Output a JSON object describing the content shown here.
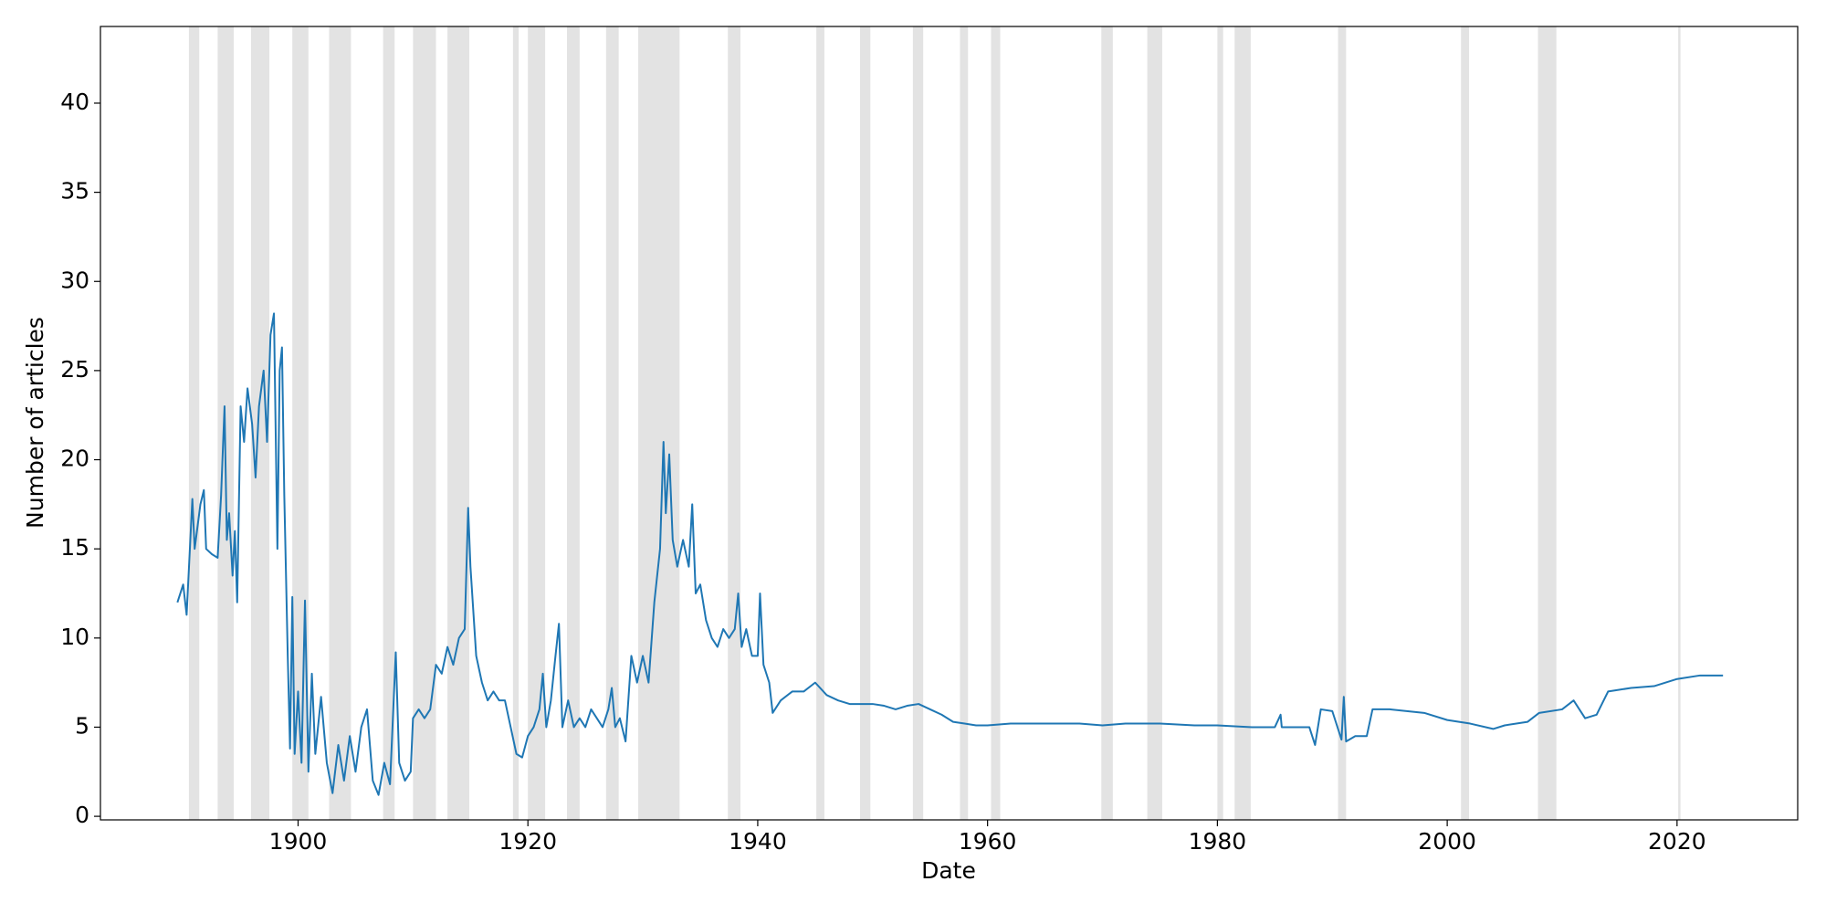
{
  "chart_data": {
    "type": "line",
    "xlabel": "Date",
    "ylabel": "Number of articles",
    "color": "#1f77b4",
    "shade_color": "#e3e3e3",
    "grid": false,
    "xlim": [
      1882.8,
      2030.5
    ],
    "ylim": [
      -0.2,
      44.3
    ],
    "xticks": [
      1900,
      1920,
      1940,
      1960,
      1980,
      2000,
      2020
    ],
    "yticks": [
      0,
      5,
      10,
      15,
      20,
      25,
      30,
      35,
      40
    ],
    "shaded_periods": [
      [
        1890.5,
        1891.4
      ],
      [
        1893.0,
        1894.4
      ],
      [
        1895.9,
        1897.5
      ],
      [
        1899.5,
        1900.9
      ],
      [
        1902.7,
        1904.6
      ],
      [
        1907.4,
        1908.4
      ],
      [
        1910.0,
        1912.0
      ],
      [
        1913.0,
        1914.9
      ],
      [
        1918.7,
        1919.2
      ],
      [
        1920.0,
        1921.5
      ],
      [
        1923.4,
        1924.5
      ],
      [
        1926.8,
        1927.9
      ],
      [
        1929.6,
        1933.2
      ],
      [
        1937.4,
        1938.5
      ],
      [
        1945.1,
        1945.8
      ],
      [
        1948.9,
        1949.8
      ],
      [
        1953.5,
        1954.4
      ],
      [
        1957.6,
        1958.3
      ],
      [
        1960.3,
        1961.1
      ],
      [
        1969.9,
        1970.9
      ],
      [
        1973.9,
        1975.2
      ],
      [
        1980.0,
        1980.5
      ],
      [
        1981.5,
        1982.9
      ],
      [
        1990.5,
        1991.2
      ],
      [
        2001.2,
        2001.9
      ],
      [
        2007.9,
        2009.5
      ],
      [
        2020.1,
        2020.3
      ]
    ],
    "x": [
      1889.5,
      1890,
      1890.3,
      1890.8,
      1891,
      1891.5,
      1891.8,
      1892,
      1892.5,
      1893,
      1893.3,
      1893.6,
      1893.8,
      1894,
      1894.3,
      1894.5,
      1894.7,
      1895,
      1895.3,
      1895.6,
      1896,
      1896.3,
      1896.6,
      1897,
      1897.3,
      1897.6,
      1897.9,
      1898.2,
      1898.4,
      1898.6,
      1898.8,
      1899.1,
      1899.3,
      1899.5,
      1899.7,
      1900,
      1900.3,
      1900.6,
      1900.9,
      1901.2,
      1901.5,
      1902,
      1902.5,
      1903,
      1903.5,
      1904,
      1904.5,
      1905,
      1905.5,
      1906,
      1906.5,
      1907,
      1907.5,
      1908,
      1908.5,
      1908.8,
      1909.3,
      1909.8,
      1910,
      1910.5,
      1911,
      1911.5,
      1912,
      1912.5,
      1913,
      1913.5,
      1914,
      1914.5,
      1914.8,
      1915,
      1915.5,
      1916,
      1916.5,
      1917,
      1917.5,
      1918,
      1918.5,
      1919,
      1919.5,
      1920,
      1920.5,
      1921,
      1921.3,
      1921.6,
      1922,
      1922.4,
      1922.7,
      1923,
      1923.5,
      1924,
      1924.5,
      1925,
      1925.5,
      1926,
      1926.5,
      1927,
      1927.3,
      1927.6,
      1928,
      1928.5,
      1929,
      1929.5,
      1930,
      1930.5,
      1931,
      1931.5,
      1931.8,
      1932,
      1932.3,
      1932.6,
      1933,
      1933.5,
      1934,
      1934.3,
      1934.6,
      1935,
      1935.5,
      1936,
      1936.5,
      1937,
      1937.5,
      1938,
      1938.3,
      1938.6,
      1939,
      1939.5,
      1940,
      1940.2,
      1940.5,
      1941,
      1941.3,
      1942,
      1943,
      1944,
      1945,
      1946,
      1947,
      1948,
      1949,
      1950,
      1951,
      1952,
      1953,
      1954,
      1955,
      1956,
      1957,
      1958,
      1959,
      1960,
      1962,
      1965,
      1968,
      1970,
      1972,
      1975,
      1978,
      1980,
      1983,
      1985,
      1985.5,
      1985.6,
      1988,
      1988.5,
      1989,
      1990,
      1990.8,
      1991,
      1991.2,
      1992,
      1993,
      1993.5,
      1995,
      1998,
      2000,
      2002,
      2004,
      2005,
      2007,
      2008,
      2010,
      2011,
      2012,
      2013,
      2014,
      2016,
      2018,
      2020,
      2022,
      2024
    ],
    "values": [
      12,
      13,
      11.3,
      17.8,
      15,
      17.5,
      18.3,
      15,
      14.7,
      14.5,
      18,
      23,
      15.5,
      17,
      13.5,
      16,
      12,
      23,
      21,
      24,
      22,
      19,
      23,
      25,
      21,
      27,
      28.2,
      15,
      25,
      26.3,
      18,
      9,
      3.8,
      12.3,
      3.5,
      7,
      3,
      12.1,
      2.5,
      8,
      3.5,
      6.7,
      3,
      1.3,
      4,
      2,
      4.5,
      2.5,
      5,
      6,
      2,
      1.2,
      3,
      1.8,
      9.2,
      3,
      2,
      2.5,
      5.5,
      6,
      5.5,
      6,
      8.5,
      8,
      9.5,
      8.5,
      10,
      10.5,
      17.3,
      14,
      9,
      7.5,
      6.5,
      7,
      6.5,
      6.5,
      5,
      3.5,
      3.3,
      4.5,
      5,
      6,
      8,
      5,
      6.5,
      9,
      10.8,
      5,
      6.5,
      5,
      5.5,
      5,
      6,
      5.5,
      5,
      6,
      7.2,
      5,
      5.5,
      4.2,
      9,
      7.5,
      9,
      7.5,
      12,
      15,
      21,
      17,
      20.3,
      15.5,
      14,
      15.5,
      14,
      17.5,
      12.5,
      13,
      11,
      10,
      9.5,
      10.5,
      10,
      10.5,
      12.5,
      9.5,
      10.5,
      9,
      9,
      12.5,
      8.5,
      7.5,
      5.8,
      6.5,
      7,
      7,
      7.5,
      6.8,
      6.5,
      6.3,
      6.3,
      6.3,
      6.2,
      6,
      6.2,
      6.3,
      6,
      5.7,
      5.3,
      5.2,
      5.1,
      5.1,
      5.2,
      5.2,
      5.2,
      5.1,
      5.2,
      5.2,
      5.1,
      5.1,
      5,
      5,
      5.7,
      5,
      5,
      4,
      6,
      5.9,
      4.3,
      6.7,
      4.2,
      4.5,
      4.5,
      6,
      6,
      5.8,
      5.4,
      5.2,
      4.9,
      5.1,
      5.3,
      5.8,
      6,
      6.5,
      5.5,
      5.7,
      7,
      7.2,
      7.3,
      7.7,
      7.9,
      7.9
    ]
  }
}
